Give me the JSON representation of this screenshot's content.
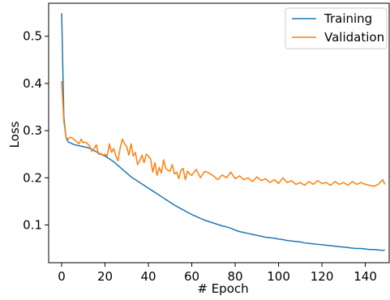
{
  "chart_data": {
    "type": "line",
    "title": "",
    "xlabel": "# Epoch",
    "ylabel": "Loss",
    "xlim": [
      -6,
      151
    ],
    "ylim": [
      0.02,
      0.57
    ],
    "x_ticks": [
      0,
      20,
      40,
      60,
      80,
      100,
      120,
      140
    ],
    "y_ticks": [
      0.1,
      0.2,
      0.3,
      0.4,
      0.5
    ],
    "grid": false,
    "legend_position": "top-right",
    "series": [
      {
        "name": "Training",
        "color": "#1f77b4",
        "x": [
          0,
          1,
          2,
          3,
          4,
          5,
          6,
          8,
          10,
          12,
          14,
          16,
          18,
          20,
          22,
          24,
          26,
          28,
          30,
          32,
          34,
          36,
          38,
          40,
          42,
          44,
          46,
          48,
          50,
          52,
          54,
          56,
          58,
          60,
          62,
          64,
          66,
          68,
          70,
          72,
          74,
          76,
          78,
          80,
          82,
          84,
          86,
          88,
          90,
          92,
          94,
          96,
          98,
          100,
          102,
          104,
          106,
          108,
          110,
          112,
          114,
          116,
          118,
          120,
          122,
          124,
          126,
          128,
          130,
          132,
          134,
          136,
          138,
          140,
          142,
          144,
          146,
          148,
          149
        ],
        "y": [
          0.549,
          0.33,
          0.285,
          0.276,
          0.274,
          0.272,
          0.27,
          0.268,
          0.266,
          0.264,
          0.26,
          0.255,
          0.25,
          0.246,
          0.24,
          0.234,
          0.226,
          0.218,
          0.21,
          0.202,
          0.196,
          0.19,
          0.184,
          0.178,
          0.172,
          0.166,
          0.16,
          0.154,
          0.148,
          0.142,
          0.137,
          0.132,
          0.127,
          0.122,
          0.118,
          0.114,
          0.11,
          0.107,
          0.104,
          0.101,
          0.098,
          0.096,
          0.093,
          0.089,
          0.086,
          0.084,
          0.082,
          0.08,
          0.078,
          0.076,
          0.074,
          0.073,
          0.072,
          0.07,
          0.069,
          0.067,
          0.066,
          0.065,
          0.064,
          0.062,
          0.061,
          0.06,
          0.059,
          0.058,
          0.057,
          0.056,
          0.055,
          0.054,
          0.053,
          0.052,
          0.051,
          0.05,
          0.05,
          0.049,
          0.048,
          0.048,
          0.047,
          0.046,
          0.047
        ]
      },
      {
        "name": "Validation",
        "color": "#ff7f0e",
        "x": [
          0,
          1,
          2,
          3,
          4,
          5,
          6,
          7,
          8,
          9,
          10,
          11,
          12,
          13,
          14,
          15,
          16,
          17,
          18,
          19,
          20,
          21,
          22,
          23,
          24,
          25,
          26,
          27,
          28,
          29,
          30,
          31,
          32,
          33,
          34,
          35,
          36,
          37,
          38,
          39,
          40,
          41,
          42,
          43,
          44,
          45,
          46,
          47,
          48,
          49,
          50,
          51,
          52,
          53,
          54,
          55,
          56,
          57,
          58,
          59,
          60,
          62,
          64,
          66,
          68,
          70,
          72,
          74,
          76,
          78,
          80,
          82,
          84,
          86,
          88,
          90,
          92,
          94,
          96,
          98,
          100,
          102,
          104,
          106,
          108,
          110,
          112,
          114,
          116,
          118,
          120,
          122,
          124,
          126,
          128,
          130,
          132,
          134,
          136,
          138,
          140,
          142,
          144,
          146,
          148,
          149
        ],
        "y": [
          0.405,
          0.32,
          0.285,
          0.282,
          0.286,
          0.284,
          0.28,
          0.276,
          0.272,
          0.282,
          0.274,
          0.276,
          0.272,
          0.266,
          0.256,
          0.262,
          0.27,
          0.25,
          0.252,
          0.248,
          0.25,
          0.246,
          0.272,
          0.254,
          0.262,
          0.246,
          0.236,
          0.264,
          0.282,
          0.272,
          0.266,
          0.248,
          0.272,
          0.246,
          0.254,
          0.228,
          0.236,
          0.248,
          0.232,
          0.25,
          0.246,
          0.24,
          0.212,
          0.232,
          0.205,
          0.222,
          0.21,
          0.238,
          0.22,
          0.216,
          0.214,
          0.228,
          0.208,
          0.212,
          0.198,
          0.216,
          0.22,
          0.196,
          0.214,
          0.208,
          0.205,
          0.218,
          0.2,
          0.214,
          0.21,
          0.204,
          0.196,
          0.206,
          0.2,
          0.212,
          0.198,
          0.204,
          0.196,
          0.2,
          0.192,
          0.202,
          0.194,
          0.198,
          0.19,
          0.196,
          0.188,
          0.2,
          0.19,
          0.194,
          0.186,
          0.19,
          0.184,
          0.192,
          0.186,
          0.194,
          0.188,
          0.19,
          0.184,
          0.192,
          0.186,
          0.19,
          0.184,
          0.192,
          0.186,
          0.19,
          0.186,
          0.184,
          0.182,
          0.186,
          0.196,
          0.186
        ]
      }
    ]
  }
}
